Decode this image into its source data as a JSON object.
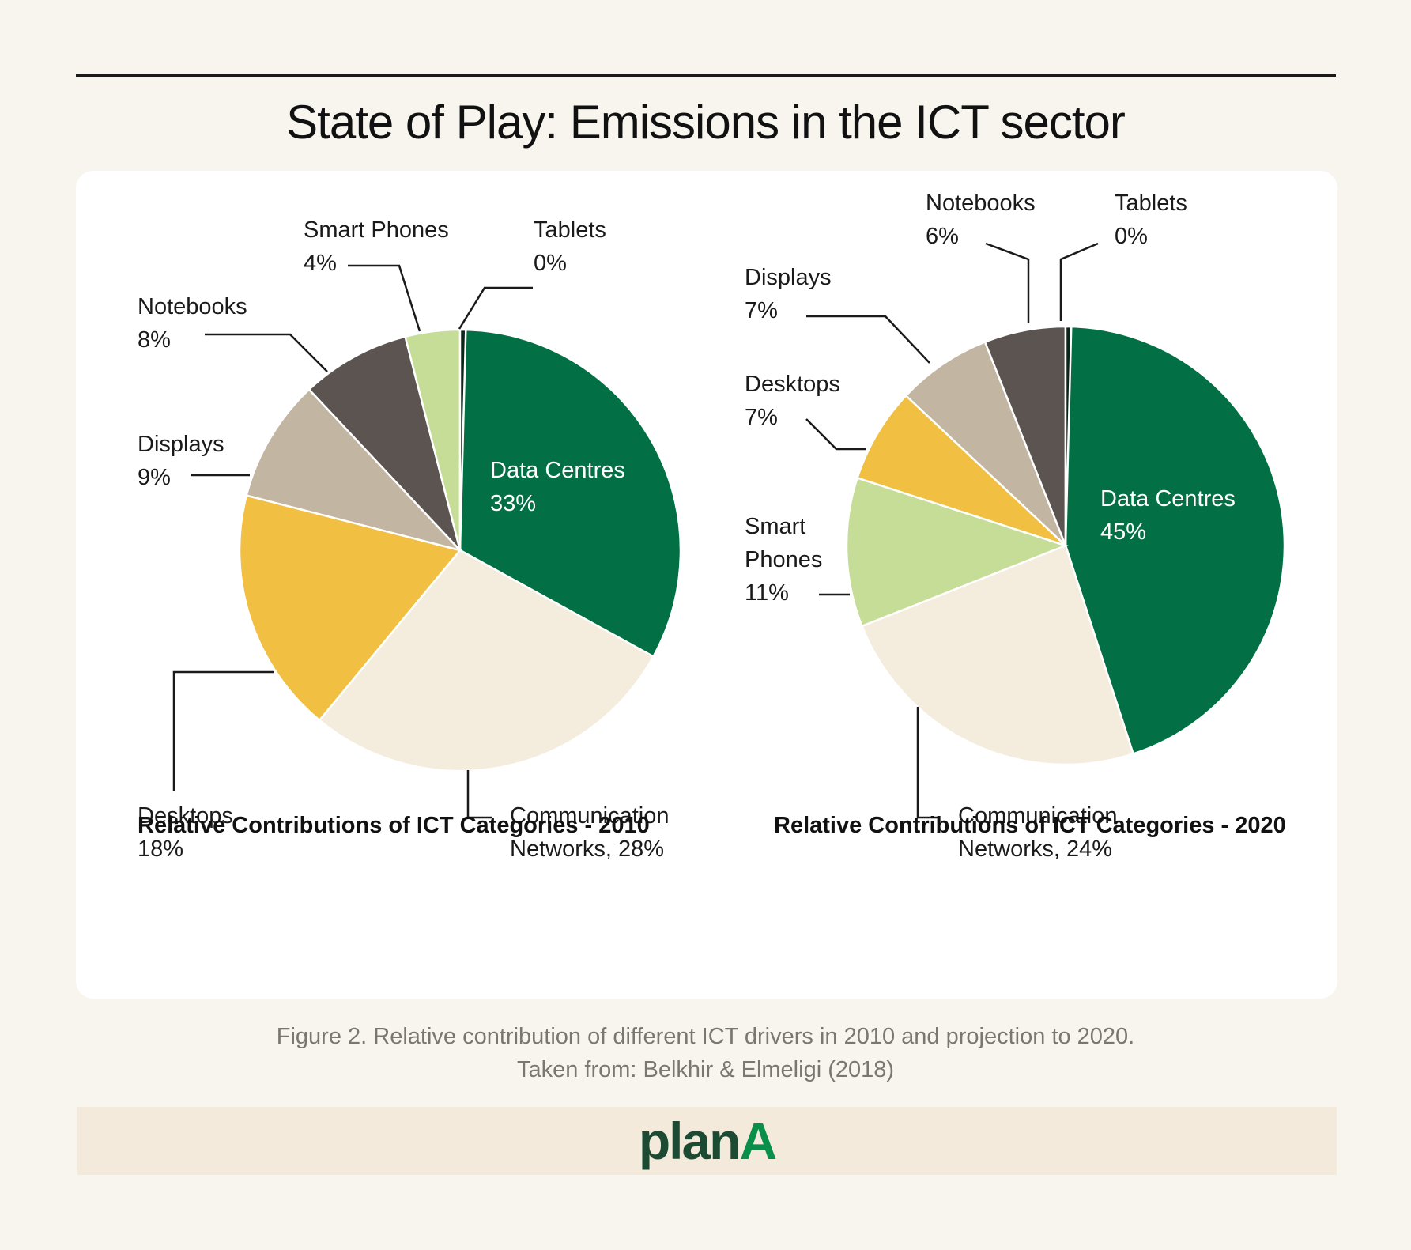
{
  "title": "State of Play: Emissions in the ICT sector",
  "colors": {
    "Data Centres": "#027044",
    "Communication Networks": "#f4ecdd",
    "Desktops": "#f1bf42",
    "Displays": "#c2b6a3",
    "Notebooks": "#5b5450",
    "Smart Phones": "#c5dd97",
    "Tablets": "#0c2519"
  },
  "chart_data": [
    {
      "type": "pie",
      "title": "Relative Contributions of ICT Categories - 2010",
      "unit": "%",
      "slices": [
        {
          "name": "Data Centres",
          "value": 33
        },
        {
          "name": "Communication Networks",
          "value": 28
        },
        {
          "name": "Desktops",
          "value": 18
        },
        {
          "name": "Displays",
          "value": 9
        },
        {
          "name": "Notebooks",
          "value": 8
        },
        {
          "name": "Smart Phones",
          "value": 4
        },
        {
          "name": "Tablets",
          "value": 0
        }
      ],
      "labels": [
        {
          "key": "Data Centres",
          "lines": [
            "Data Centres",
            "33%"
          ],
          "inside": true
        },
        {
          "key": "Communication Networks",
          "lines": [
            "Communication",
            "Networks, 28%"
          ]
        },
        {
          "key": "Desktops",
          "lines": [
            "Desktops",
            "18%"
          ]
        },
        {
          "key": "Displays",
          "lines": [
            "Displays",
            "9%"
          ]
        },
        {
          "key": "Notebooks",
          "lines": [
            "Notebooks",
            "8%"
          ]
        },
        {
          "key": "Smart Phones",
          "lines": [
            "Smart Phones",
            "4%"
          ]
        },
        {
          "key": "Tablets",
          "lines": [
            "Tablets",
            "0%"
          ]
        }
      ]
    },
    {
      "type": "pie",
      "title": "Relative Contributions of ICT Categories - 2020",
      "unit": "%",
      "slices": [
        {
          "name": "Data Centres",
          "value": 45
        },
        {
          "name": "Communication Networks",
          "value": 24
        },
        {
          "name": "Smart Phones",
          "value": 11
        },
        {
          "name": "Desktops",
          "value": 7
        },
        {
          "name": "Displays",
          "value": 7
        },
        {
          "name": "Notebooks",
          "value": 6
        },
        {
          "name": "Tablets",
          "value": 0
        }
      ],
      "labels": [
        {
          "key": "Data Centres",
          "lines": [
            "Data Centres",
            "45%"
          ],
          "inside": true
        },
        {
          "key": "Communication Networks",
          "lines": [
            "Communication",
            "Networks, 24%"
          ]
        },
        {
          "key": "Smart Phones",
          "lines": [
            "Smart",
            "Phones",
            "11%"
          ]
        },
        {
          "key": "Desktops",
          "lines": [
            "Desktops",
            "7%"
          ]
        },
        {
          "key": "Displays",
          "lines": [
            "Displays",
            "7%"
          ]
        },
        {
          "key": "Notebooks",
          "lines": [
            "Notebooks",
            "6%"
          ]
        },
        {
          "key": "Tablets",
          "lines": [
            "Tablets",
            "0%"
          ]
        }
      ]
    }
  ],
  "caption": {
    "line1": "Figure 2. Relative contribution of different ICT drivers in 2010 and projection to 2020.",
    "line2": "Taken from: Belkhir & Elmeligi (2018)"
  },
  "brand": {
    "part1": "plan",
    "part2": "A"
  }
}
